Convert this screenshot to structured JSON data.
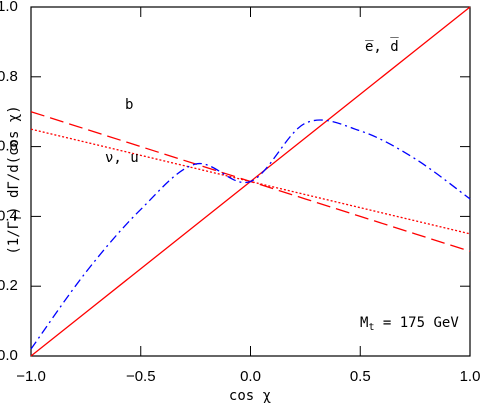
{
  "chart_data": {
    "type": "line",
    "x_label": "cos χ",
    "y_label": {
      "base": "(1/Γ",
      "sub": "T",
      "rest": ")  dΓ/d(cos χ)"
    },
    "annotation": {
      "base": "M",
      "sub": "t",
      "rest": " = 175 GeV"
    },
    "x": [
      -1,
      -0.75,
      -0.5,
      -0.25,
      0,
      0.25,
      0.5,
      0.75,
      1
    ],
    "series": [
      {
        "name": "e̅, d̅",
        "color": "#ff0000",
        "dash": "solid",
        "values": [
          0,
          0.125,
          0.25,
          0.375,
          0.5,
          0.625,
          0.75,
          0.875,
          1
        ]
      },
      {
        "name": "b",
        "color": "#ff0000",
        "dash": "long-dash",
        "values": [
          0.7,
          0.65,
          0.6,
          0.55,
          0.5,
          0.45,
          0.4,
          0.35,
          0.3
        ]
      },
      {
        "name": "ν, u",
        "color": "#ff0000",
        "dash": "dotted",
        "values": [
          0.65,
          0.6125,
          0.575,
          0.5375,
          0.5,
          0.4625,
          0.425,
          0.3875,
          0.35
        ]
      },
      {
        "color": "#0000ff",
        "dash": "dash-dot",
        "values": [
          0.02,
          0.24,
          0.42,
          0.55,
          0.5,
          0.667,
          0.645,
          0.565,
          0.45
        ]
      }
    ],
    "xlim": [
      -1,
      1
    ],
    "ylim": [
      0,
      1
    ],
    "xticks": [
      {
        "value": -1,
        "label": "−1.0"
      },
      {
        "value": -0.5,
        "label": "−0.5"
      },
      {
        "value": 0,
        "label": "0.0"
      },
      0.5,
      {
        "value": 1,
        "label": "1.0"
      }
    ],
    "yticks": [
      {
        "value": 0,
        "label": "0.0"
      },
      0.2,
      0.4,
      0.6,
      0.8,
      {
        "value": 1,
        "label": "1.0"
      }
    ],
    "grid": false
  }
}
